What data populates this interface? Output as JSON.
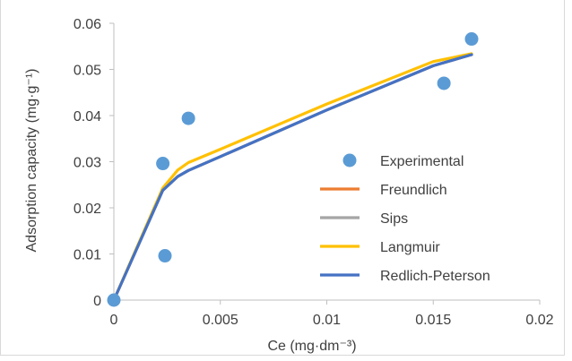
{
  "chart_data": {
    "type": "scatter",
    "xlabel": "Ce (mg·dm⁻³)",
    "ylabel": "Adsorption capacity (mg·g⁻¹)",
    "xlim": [
      0,
      0.02
    ],
    "ylim": [
      0,
      0.06
    ],
    "x_ticks": [
      "0",
      "0.005",
      "0.01",
      "0.015",
      "0.02"
    ],
    "y_ticks": [
      "0",
      "0.01",
      "0.02",
      "0.03",
      "0.04",
      "0.05",
      "0.06"
    ],
    "grid": false,
    "legend_position": "right",
    "series": [
      {
        "name": "Experimental",
        "kind": "marker",
        "color": "#5b9bd5",
        "x": [
          0,
          0.0023,
          0.0024,
          0.0035,
          0.0155,
          0.0168
        ],
        "y": [
          0,
          0.0296,
          0.0096,
          0.0394,
          0.047,
          0.0566
        ]
      },
      {
        "name": "Freundlich",
        "kind": "line",
        "color": "#ed7d31",
        "x": [
          0,
          0.0023,
          0.003,
          0.0035,
          0.005,
          0.01,
          0.015,
          0.0168
        ],
        "y": [
          0,
          0.0238,
          0.0268,
          0.0281,
          0.0311,
          0.0412,
          0.0508,
          0.0532
        ]
      },
      {
        "name": "Sips",
        "kind": "line",
        "color": "#a5a5a5",
        "x": [
          0,
          0.0023,
          0.003,
          0.0035,
          0.005,
          0.01,
          0.015,
          0.0168
        ],
        "y": [
          0,
          0.0238,
          0.0268,
          0.0281,
          0.0311,
          0.0412,
          0.0508,
          0.0532
        ]
      },
      {
        "name": "Langmuir",
        "kind": "line",
        "color": "#ffc000",
        "x": [
          0,
          0.0023,
          0.003,
          0.0035,
          0.005,
          0.01,
          0.015,
          0.0168
        ],
        "y": [
          0,
          0.0243,
          0.0282,
          0.0298,
          0.0327,
          0.0425,
          0.0517,
          0.0534
        ]
      },
      {
        "name": "Redlich-Peterson",
        "kind": "line",
        "color": "#4472c4",
        "x": [
          0,
          0.0023,
          0.003,
          0.0035,
          0.005,
          0.01,
          0.015,
          0.0168
        ],
        "y": [
          0,
          0.0238,
          0.0268,
          0.0281,
          0.0311,
          0.0412,
          0.0508,
          0.0532
        ]
      }
    ]
  }
}
